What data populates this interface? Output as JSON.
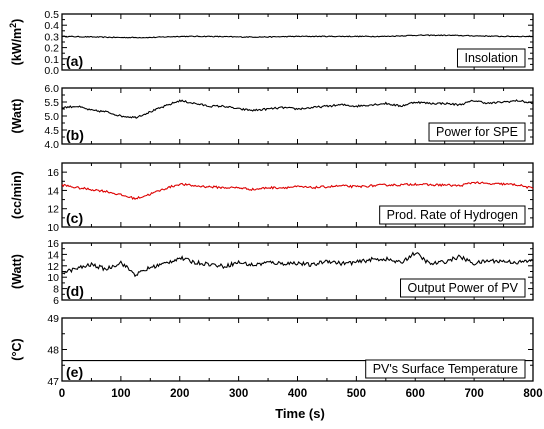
{
  "chart_data": [
    {
      "type": "line",
      "panel_tag": "(a)",
      "ylabel": "(kW/m",
      "ylabel_sup": "2",
      "ylabel_close": ")",
      "legend": "Insolation",
      "ylim": [
        0.0,
        0.5
      ],
      "yticks": [
        "0.0",
        "0.1",
        "0.2",
        "0.3",
        "0.4",
        "0.5"
      ],
      "color": "#000000",
      "series": [
        {
          "x": [
            0,
            50,
            100,
            150,
            200,
            250,
            300,
            350,
            400,
            450,
            500,
            550,
            600,
            650,
            700,
            750,
            800
          ],
          "values": [
            0.3,
            0.295,
            0.29,
            0.29,
            0.3,
            0.3,
            0.295,
            0.295,
            0.3,
            0.3,
            0.3,
            0.3,
            0.31,
            0.31,
            0.305,
            0.3,
            0.3
          ]
        }
      ]
    },
    {
      "type": "line",
      "panel_tag": "(b)",
      "ylabel": "(Watt)",
      "legend": "Power for SPE",
      "ylim": [
        4.0,
        6.0
      ],
      "yticks": [
        "4.0",
        "4.5",
        "5.0",
        "5.5",
        "6.0"
      ],
      "color": "#000000",
      "series": [
        {
          "x": [
            0,
            25,
            50,
            75,
            100,
            125,
            150,
            175,
            200,
            225,
            250,
            275,
            300,
            325,
            350,
            375,
            400,
            425,
            450,
            475,
            500,
            525,
            550,
            575,
            600,
            625,
            650,
            675,
            700,
            725,
            750,
            775,
            800
          ],
          "values": [
            5.3,
            5.35,
            5.2,
            5.15,
            5.0,
            4.95,
            5.15,
            5.35,
            5.55,
            5.45,
            5.35,
            5.35,
            5.25,
            5.2,
            5.25,
            5.3,
            5.25,
            5.3,
            5.35,
            5.4,
            5.35,
            5.4,
            5.45,
            5.35,
            5.5,
            5.45,
            5.45,
            5.4,
            5.55,
            5.45,
            5.5,
            5.55,
            5.45
          ]
        }
      ]
    },
    {
      "type": "line",
      "panel_tag": "(c)",
      "ylabel": "(cc/min)",
      "legend": "Prod. Rate of Hydrogen",
      "ylim": [
        10,
        17
      ],
      "yticks": [
        "10",
        "12",
        "14",
        "16"
      ],
      "color": "#dd0000",
      "series": [
        {
          "x": [
            0,
            25,
            50,
            75,
            100,
            125,
            150,
            175,
            200,
            225,
            250,
            275,
            300,
            325,
            350,
            375,
            400,
            425,
            450,
            475,
            500,
            525,
            550,
            575,
            600,
            625,
            650,
            675,
            700,
            725,
            750,
            775,
            800
          ],
          "values": [
            14.6,
            14.3,
            14.1,
            13.9,
            13.5,
            13.1,
            13.6,
            14.2,
            14.7,
            14.5,
            14.4,
            14.3,
            14.3,
            14.1,
            14.3,
            14.3,
            14.4,
            14.3,
            14.4,
            14.5,
            14.4,
            14.5,
            14.6,
            14.6,
            14.7,
            14.6,
            14.6,
            14.5,
            14.9,
            14.7,
            14.7,
            14.6,
            14.2
          ]
        }
      ]
    },
    {
      "type": "line",
      "panel_tag": "(d)",
      "ylabel": "(Watt)",
      "legend": "Output Power of PV",
      "ylim": [
        6,
        16
      ],
      "yticks": [
        "6",
        "8",
        "10",
        "12",
        "14",
        "16"
      ],
      "color": "#000000",
      "series": [
        {
          "x": [
            0,
            25,
            50,
            75,
            100,
            125,
            150,
            175,
            200,
            225,
            250,
            275,
            300,
            325,
            350,
            375,
            400,
            425,
            450,
            475,
            500,
            525,
            550,
            575,
            600,
            625,
            650,
            675,
            700,
            725,
            750,
            775,
            800
          ],
          "values": [
            10.8,
            11.5,
            12.2,
            11.4,
            12.6,
            10.4,
            11.7,
            12.4,
            13.4,
            12.6,
            12.3,
            11.9,
            12.6,
            12.1,
            12.6,
            12.4,
            12.5,
            12.1,
            12.9,
            12.4,
            12.6,
            13.1,
            13.2,
            12.5,
            14.3,
            12.3,
            12.7,
            13.6,
            12.4,
            12.9,
            12.8,
            12.6,
            12.9
          ]
        }
      ]
    },
    {
      "type": "line",
      "panel_tag": "(e)",
      "ylabel": "(°C)",
      "legend": "PV's Surface Temperature",
      "ylim": [
        47,
        49
      ],
      "yticks": [
        "47",
        "48",
        "49"
      ],
      "color": "#000000",
      "series": [
        {
          "x": [
            0,
            100,
            200,
            300,
            400,
            500,
            600,
            700,
            800
          ],
          "values": [
            47.65,
            47.65,
            47.65,
            47.65,
            47.65,
            47.65,
            47.65,
            47.65,
            47.65
          ]
        }
      ]
    }
  ],
  "x_axis": {
    "label": "Time (s)",
    "xlim": [
      0,
      800
    ],
    "ticks": [
      "0",
      "100",
      "200",
      "300",
      "400",
      "500",
      "600",
      "700",
      "800"
    ]
  }
}
